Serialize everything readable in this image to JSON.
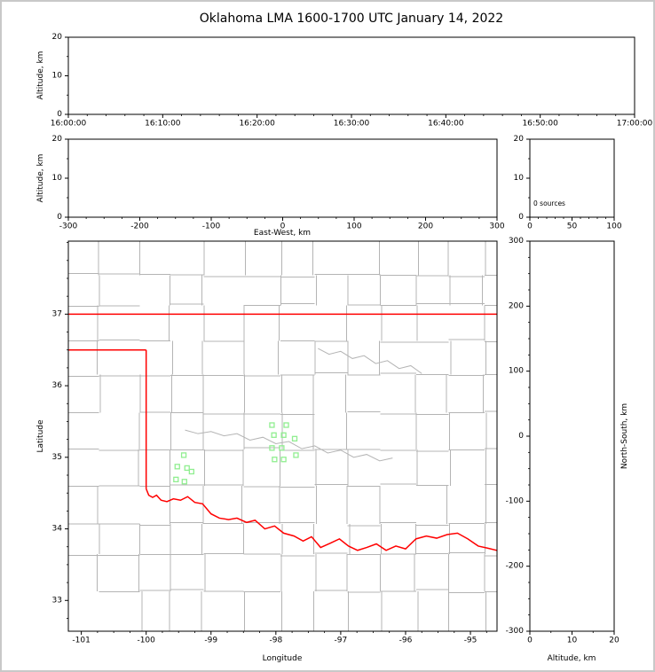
{
  "figure": {
    "title": "Oklahoma LMA 1600-1700 UTC January 14, 2022",
    "background": "#ffffff",
    "frame_color": "#c8c8c8",
    "accent_colors": {
      "axis": "#000000",
      "county_border": "#b4b4b4",
      "state_border": "#ff0000",
      "station_marker": "#90ee90"
    }
  },
  "chart_data": [
    {
      "id": "time_height",
      "type": "scatter",
      "position": "top",
      "xlabel": "",
      "ylabel": "Altitude, km",
      "xlim": [
        0,
        3600
      ],
      "xticks": [
        0,
        600,
        1200,
        1800,
        2400,
        3000,
        3600
      ],
      "xtick_labels": [
        "16:00:00",
        "16:10:00",
        "16:20:00",
        "16:30:00",
        "16:40:00",
        "16:50:00",
        "17:00:00"
      ],
      "minor_x_step": 120,
      "ylim": [
        0,
        20
      ],
      "yticks": [
        0,
        10,
        20
      ],
      "minor_y_step": 5,
      "points": []
    },
    {
      "id": "ew_height",
      "type": "scatter",
      "position": "middle-left",
      "xlabel": "East-West, km",
      "ylabel": "Altitude, km",
      "xlim": [
        -300,
        300
      ],
      "xticks": [
        -300,
        -200,
        -100,
        0,
        100,
        200,
        300
      ],
      "minor_x_step": 25,
      "ylim": [
        0,
        20
      ],
      "yticks": [
        0,
        10,
        20
      ],
      "minor_y_step": 5,
      "points": []
    },
    {
      "id": "source_histogram",
      "type": "histogram",
      "position": "middle-right",
      "annotation": "0 sources",
      "xlabel": "",
      "ylabel": "",
      "xlim": [
        0,
        100
      ],
      "xticks": [
        0,
        50,
        100
      ],
      "minor_x_step": 10,
      "ylim": [
        0,
        20
      ],
      "yticks": [
        0,
        10,
        20
      ],
      "minor_y_step": 5,
      "values": []
    },
    {
      "id": "plan_view",
      "type": "map",
      "position": "main",
      "xlabel": "Longitude",
      "ylabel": "Latitude",
      "xlim": [
        -101.2,
        -94.59
      ],
      "xticks": [
        -101,
        -100,
        -99,
        -98,
        -97,
        -96,
        -95
      ],
      "minor_x_step": 0.25,
      "ylim": [
        32.57,
        38.02
      ],
      "yticks": [
        33,
        34,
        35,
        36,
        37
      ],
      "minor_y_step": 0.25,
      "stations": [
        {
          "lon": -98.06,
          "lat": 35.45
        },
        {
          "lon": -97.84,
          "lat": 35.45
        },
        {
          "lon": -98.03,
          "lat": 35.31
        },
        {
          "lon": -97.88,
          "lat": 35.31
        },
        {
          "lon": -97.71,
          "lat": 35.26
        },
        {
          "lon": -98.06,
          "lat": 35.13
        },
        {
          "lon": -97.91,
          "lat": 35.13
        },
        {
          "lon": -97.69,
          "lat": 35.03
        },
        {
          "lon": -98.02,
          "lat": 34.97
        },
        {
          "lon": -97.88,
          "lat": 34.97
        },
        {
          "lon": -99.42,
          "lat": 35.03
        },
        {
          "lon": -99.52,
          "lat": 34.87
        },
        {
          "lon": -99.37,
          "lat": 34.85
        },
        {
          "lon": -99.54,
          "lat": 34.69
        },
        {
          "lon": -99.41,
          "lat": 34.66
        },
        {
          "lon": -99.3,
          "lat": 34.8
        }
      ],
      "state_border": {
        "north_lat": 37.0,
        "panhandle_south_lat": 36.5,
        "west_lon": -100.0,
        "red_river": [
          [
            -100.0,
            34.56
          ],
          [
            -99.96,
            34.47
          ],
          [
            -99.9,
            34.44
          ],
          [
            -99.84,
            34.47
          ],
          [
            -99.77,
            34.4
          ],
          [
            -99.68,
            34.38
          ],
          [
            -99.58,
            34.42
          ],
          [
            -99.47,
            34.4
          ],
          [
            -99.36,
            34.45
          ],
          [
            -99.25,
            34.37
          ],
          [
            -99.13,
            34.35
          ],
          [
            -99.0,
            34.21
          ],
          [
            -98.87,
            34.15
          ],
          [
            -98.73,
            34.13
          ],
          [
            -98.6,
            34.15
          ],
          [
            -98.45,
            34.09
          ],
          [
            -98.32,
            34.12
          ],
          [
            -98.17,
            34.0
          ],
          [
            -98.02,
            34.04
          ],
          [
            -97.88,
            33.94
          ],
          [
            -97.72,
            33.9
          ],
          [
            -97.58,
            33.83
          ],
          [
            -97.45,
            33.89
          ],
          [
            -97.31,
            33.74
          ],
          [
            -97.16,
            33.8
          ],
          [
            -97.02,
            33.86
          ],
          [
            -96.88,
            33.76
          ],
          [
            -96.74,
            33.7
          ],
          [
            -96.6,
            33.74
          ],
          [
            -96.45,
            33.79
          ],
          [
            -96.3,
            33.7
          ],
          [
            -96.15,
            33.76
          ],
          [
            -96.0,
            33.72
          ],
          [
            -95.84,
            33.86
          ],
          [
            -95.68,
            33.9
          ],
          [
            -95.52,
            33.87
          ],
          [
            -95.36,
            33.92
          ],
          [
            -95.2,
            33.94
          ],
          [
            -95.04,
            33.86
          ],
          [
            -94.88,
            33.76
          ],
          [
            -94.73,
            33.73
          ],
          [
            -94.55,
            33.69
          ]
        ]
      },
      "rivers": [
        [
          [
            -99.4,
            35.38
          ],
          [
            -99.2,
            35.33
          ],
          [
            -99.0,
            35.36
          ],
          [
            -98.8,
            35.3
          ],
          [
            -98.6,
            35.33
          ],
          [
            -98.4,
            35.24
          ],
          [
            -98.2,
            35.28
          ],
          [
            -98.0,
            35.19
          ],
          [
            -97.8,
            35.22
          ],
          [
            -97.6,
            35.12
          ],
          [
            -97.4,
            35.16
          ],
          [
            -97.2,
            35.06
          ],
          [
            -97.0,
            35.1
          ],
          [
            -96.8,
            35.0
          ],
          [
            -96.6,
            35.04
          ],
          [
            -96.4,
            34.95
          ],
          [
            -96.2,
            34.99
          ]
        ],
        [
          [
            -97.35,
            36.52
          ],
          [
            -97.18,
            36.44
          ],
          [
            -97.0,
            36.48
          ],
          [
            -96.82,
            36.38
          ],
          [
            -96.64,
            36.42
          ],
          [
            -96.46,
            36.31
          ],
          [
            -96.28,
            36.35
          ],
          [
            -96.1,
            36.24
          ],
          [
            -95.92,
            36.28
          ],
          [
            -95.75,
            36.17
          ]
        ]
      ]
    },
    {
      "id": "ns_height",
      "type": "scatter",
      "position": "right",
      "xlabel": "Altitude, km",
      "ylabel": "North-South, km",
      "xlim": [
        0,
        20
      ],
      "xticks": [
        0,
        10,
        20
      ],
      "minor_x_step": 5,
      "ylim": [
        -300,
        300
      ],
      "yticks": [
        -300,
        -200,
        -100,
        0,
        100,
        200,
        300
      ],
      "minor_y_step": 25,
      "points": []
    }
  ]
}
